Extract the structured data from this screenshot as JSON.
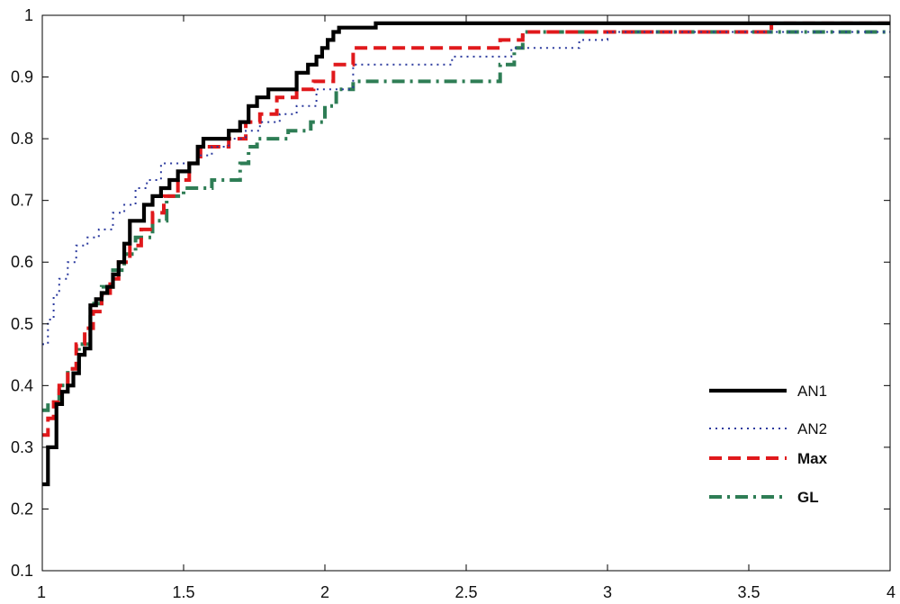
{
  "chart_data": {
    "type": "line",
    "title": "",
    "xlabel": "",
    "ylabel": "",
    "xlim": [
      1,
      4
    ],
    "ylim": [
      0.1,
      1.0
    ],
    "grid": false,
    "legend_placement": "bottom-right",
    "x_ticks": [
      "1",
      "1.5",
      "2",
      "2.5",
      "3",
      "3.5",
      "4"
    ],
    "y_ticks": [
      "0.1",
      "0.2",
      "0.3",
      "0.4",
      "0.5",
      "0.6",
      "0.7",
      "0.8",
      "0.9",
      "1"
    ],
    "series": [
      {
        "name": "AN1",
        "color": "#000000",
        "style": "solid",
        "step": true,
        "x": [
          1.0,
          1.02,
          1.05,
          1.07,
          1.09,
          1.11,
          1.13,
          1.15,
          1.17,
          1.19,
          1.21,
          1.23,
          1.25,
          1.27,
          1.29,
          1.31,
          1.36,
          1.39,
          1.42,
          1.45,
          1.48,
          1.52,
          1.55,
          1.57,
          1.66,
          1.7,
          1.73,
          1.76,
          1.8,
          1.84,
          1.9,
          1.94,
          1.97,
          1.99,
          2.01,
          2.03,
          2.05,
          2.18,
          4.0
        ],
        "y": [
          0.24,
          0.3,
          0.37,
          0.39,
          0.4,
          0.42,
          0.45,
          0.46,
          0.53,
          0.54,
          0.55,
          0.56,
          0.58,
          0.6,
          0.63,
          0.667,
          0.693,
          0.707,
          0.72,
          0.733,
          0.747,
          0.76,
          0.787,
          0.8,
          0.813,
          0.827,
          0.853,
          0.867,
          0.88,
          0.88,
          0.907,
          0.92,
          0.933,
          0.947,
          0.96,
          0.973,
          0.98,
          0.987,
          0.987
        ]
      },
      {
        "name": "AN2",
        "color": "#2b3a9e",
        "style": "dotted",
        "step": true,
        "x": [
          1.0,
          1.02,
          1.04,
          1.06,
          1.09,
          1.12,
          1.16,
          1.2,
          1.25,
          1.29,
          1.33,
          1.37,
          1.42,
          1.48,
          1.55,
          1.6,
          1.66,
          1.72,
          1.77,
          1.84,
          1.9,
          1.97,
          2.1,
          2.3,
          2.45,
          2.66,
          2.9,
          3.0,
          4.0
        ],
        "y": [
          0.467,
          0.507,
          0.547,
          0.573,
          0.6,
          0.627,
          0.64,
          0.653,
          0.68,
          0.693,
          0.72,
          0.733,
          0.76,
          0.76,
          0.773,
          0.787,
          0.8,
          0.813,
          0.827,
          0.84,
          0.853,
          0.88,
          0.92,
          0.92,
          0.933,
          0.947,
          0.96,
          0.973,
          0.973
        ]
      },
      {
        "name": "Max",
        "color": "#e0191c",
        "style": "dashed",
        "step": true,
        "x": [
          1.0,
          1.02,
          1.04,
          1.06,
          1.09,
          1.12,
          1.15,
          1.18,
          1.21,
          1.24,
          1.27,
          1.31,
          1.35,
          1.39,
          1.43,
          1.48,
          1.52,
          1.56,
          1.61,
          1.66,
          1.72,
          1.77,
          1.83,
          1.9,
          1.96,
          2.03,
          2.1,
          2.3,
          2.62,
          2.7,
          3.58,
          4.0
        ],
        "y": [
          0.32,
          0.347,
          0.373,
          0.4,
          0.427,
          0.467,
          0.493,
          0.52,
          0.547,
          0.573,
          0.6,
          0.627,
          0.653,
          0.68,
          0.707,
          0.733,
          0.76,
          0.787,
          0.787,
          0.8,
          0.827,
          0.84,
          0.867,
          0.88,
          0.893,
          0.92,
          0.947,
          0.947,
          0.96,
          0.973,
          0.987,
          0.987
        ]
      },
      {
        "name": "GL",
        "color": "#2e7d55",
        "style": "dashdot",
        "step": true,
        "x": [
          1.0,
          1.02,
          1.06,
          1.09,
          1.13,
          1.17,
          1.21,
          1.25,
          1.29,
          1.33,
          1.39,
          1.44,
          1.5,
          1.55,
          1.6,
          1.66,
          1.7,
          1.73,
          1.76,
          1.8,
          1.87,
          1.95,
          2.0,
          2.04,
          2.1,
          2.2,
          2.55,
          2.62,
          2.67,
          2.7,
          4.0
        ],
        "y": [
          0.36,
          0.373,
          0.4,
          0.427,
          0.467,
          0.533,
          0.56,
          0.587,
          0.613,
          0.64,
          0.667,
          0.707,
          0.72,
          0.72,
          0.733,
          0.733,
          0.76,
          0.787,
          0.8,
          0.8,
          0.813,
          0.827,
          0.853,
          0.88,
          0.893,
          0.893,
          0.893,
          0.92,
          0.947,
          0.973,
          0.973
        ]
      }
    ]
  }
}
